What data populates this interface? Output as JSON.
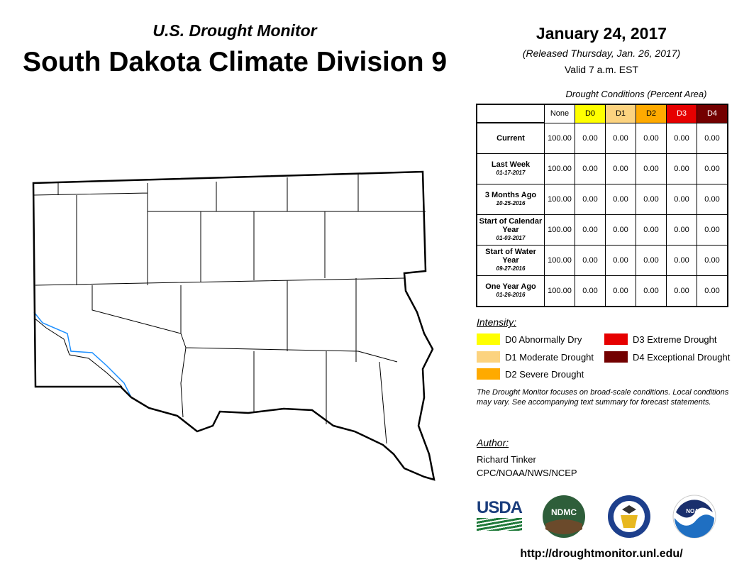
{
  "header": {
    "subtitle": "U.S. Drought Monitor",
    "title": "South Dakota Climate Division 9",
    "date": "January 24, 2017",
    "released": "(Released Thursday, Jan. 26, 2017)",
    "valid": "Valid 7 a.m. EST"
  },
  "table": {
    "caption": "Drought Conditions (Percent Area)",
    "columns": [
      {
        "label": "None",
        "color": "#ffffff",
        "text": "#000000"
      },
      {
        "label": "D0",
        "color": "#ffff00",
        "text": "#000000"
      },
      {
        "label": "D1",
        "color": "#fcd37f",
        "text": "#000000"
      },
      {
        "label": "D2",
        "color": "#ffaa00",
        "text": "#000000"
      },
      {
        "label": "D3",
        "color": "#e60000",
        "text": "#ffffff"
      },
      {
        "label": "D4",
        "color": "#730000",
        "text": "#ffffff"
      }
    ],
    "rows": [
      {
        "label": "Current",
        "date": "",
        "values": [
          "100.00",
          "0.00",
          "0.00",
          "0.00",
          "0.00",
          "0.00"
        ]
      },
      {
        "label": "Last Week",
        "date": "01-17-2017",
        "values": [
          "100.00",
          "0.00",
          "0.00",
          "0.00",
          "0.00",
          "0.00"
        ]
      },
      {
        "label": "3 Months Ago",
        "date": "10-25-2016",
        "values": [
          "100.00",
          "0.00",
          "0.00",
          "0.00",
          "0.00",
          "0.00"
        ]
      },
      {
        "label": "Start of Calendar Year",
        "date": "01-03-2017",
        "values": [
          "100.00",
          "0.00",
          "0.00",
          "0.00",
          "0.00",
          "0.00"
        ]
      },
      {
        "label": "Start of Water Year",
        "date": "09-27-2016",
        "values": [
          "100.00",
          "0.00",
          "0.00",
          "0.00",
          "0.00",
          "0.00"
        ]
      },
      {
        "label": "One Year Ago",
        "date": "01-26-2016",
        "values": [
          "100.00",
          "0.00",
          "0.00",
          "0.00",
          "0.00",
          "0.00"
        ]
      }
    ]
  },
  "legend": {
    "title": "Intensity:",
    "items": [
      {
        "label": "D0 Abnormally Dry",
        "color": "#ffff00"
      },
      {
        "label": "D1 Moderate Drought",
        "color": "#fcd37f"
      },
      {
        "label": "D2 Severe Drought",
        "color": "#ffaa00"
      },
      {
        "label": "D3 Extreme Drought",
        "color": "#e60000"
      },
      {
        "label": "D4 Exceptional Drought",
        "color": "#730000"
      }
    ]
  },
  "note": "The Drought Monitor focuses on broad-scale conditions. Local conditions may vary. See accompanying text summary for forecast statements.",
  "author": {
    "label": "Author:",
    "name": "Richard Tinker",
    "org": "CPC/NOAA/NWS/NCEP"
  },
  "logos": {
    "usda": "USDA",
    "ndmc": "NDMC",
    "noaa": "NOAA"
  },
  "url": "http://droughtmonitor.unl.edu/"
}
